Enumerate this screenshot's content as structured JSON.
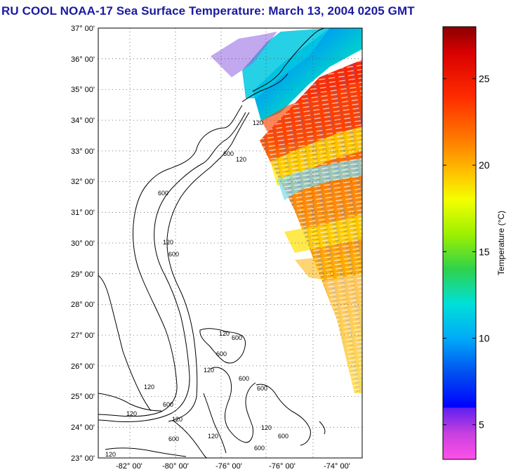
{
  "title": "RU COOL  NOAA-17  Sea Surface Temperature:  March 13, 2004 0205 GMT",
  "map": {
    "lat_labels": [
      "37° 00'",
      "36° 00'",
      "35° 00'",
      "34° 00'",
      "33° 00'",
      "32° 00'",
      "31° 00'",
      "30° 00'",
      "29° 00'",
      "28° 00'",
      "27° 00'",
      "26° 00'",
      "25° 00'",
      "24° 00'",
      "23° 00'"
    ],
    "lon_labels": [
      "-82° 00'",
      "-80° 00'",
      "-76° 00'",
      "-76° 00'",
      "-74° 00'"
    ],
    "contour_labels": [
      "120",
      "600",
      "120",
      "600",
      "120",
      "600",
      "120",
      "600",
      "120",
      "600",
      "120",
      "600",
      "120",
      "600",
      "120",
      "600",
      "120",
      "600",
      "120",
      "600",
      "120",
      "600"
    ]
  },
  "colorbar": {
    "label": "Temperature (°C)",
    "ticks": [
      "25",
      "20",
      "15",
      "10",
      "5"
    ],
    "tick_values": [
      25,
      20,
      15,
      10,
      5
    ],
    "range": [
      3,
      28
    ]
  }
}
